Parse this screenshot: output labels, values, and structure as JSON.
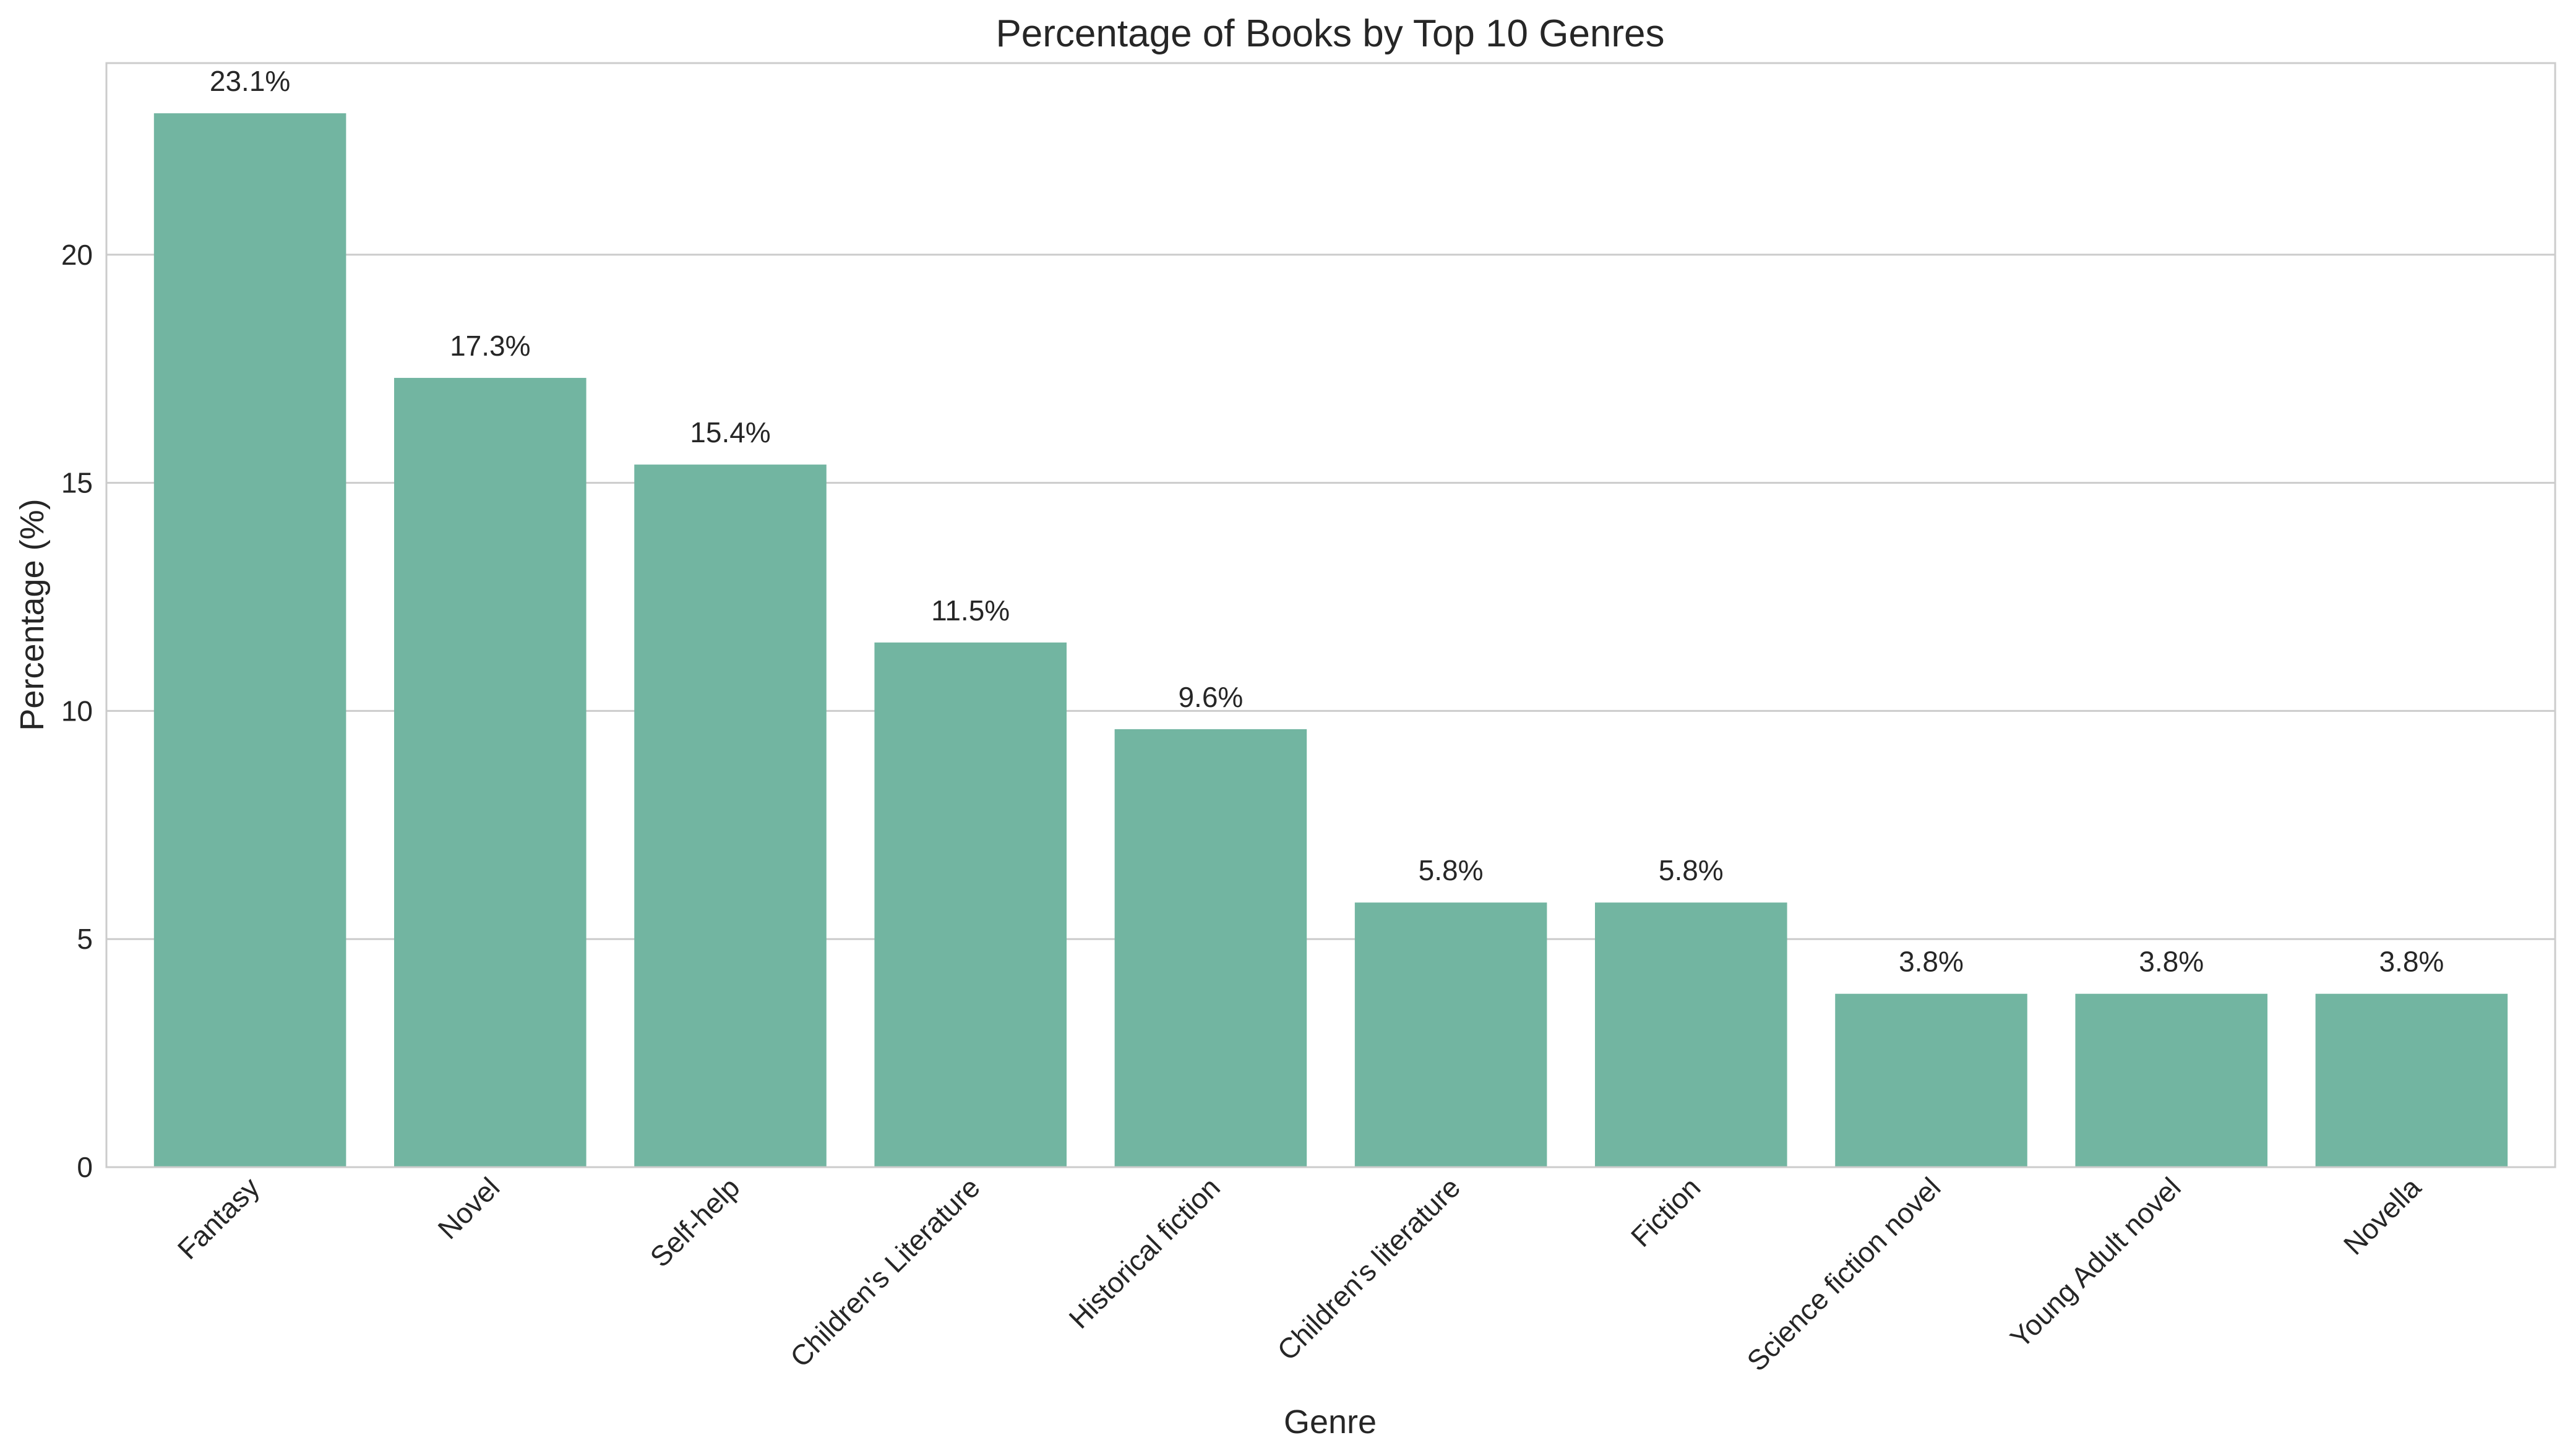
{
  "chart_data": {
    "type": "bar",
    "title": "Percentage of Books by Top 10 Genres",
    "xlabel": "Genre",
    "ylabel": "Percentage (%)",
    "categories": [
      "Fantasy",
      "Novel",
      "Self-help",
      "Children's Literature",
      "Historical fiction",
      "Children's literature",
      "Fiction",
      "Science fiction novel",
      "Young Adult novel",
      "Novella"
    ],
    "values": [
      23.1,
      17.3,
      15.4,
      11.5,
      9.6,
      5.8,
      5.8,
      3.8,
      3.8,
      3.8
    ],
    "data_labels": [
      "23.1%",
      "17.3%",
      "15.4%",
      "11.5%",
      "9.6%",
      "5.8%",
      "5.8%",
      "3.8%",
      "3.8%",
      "3.8%"
    ],
    "yticks": [
      0,
      5,
      10,
      15,
      20
    ],
    "ylim": [
      0,
      24.2
    ],
    "grid": true,
    "x_tick_rotation_deg": 45,
    "bar_color": "#72b5a1",
    "grid_color": "#cccccc",
    "frame_color": "#cccccc",
    "text_color": "#262626"
  }
}
